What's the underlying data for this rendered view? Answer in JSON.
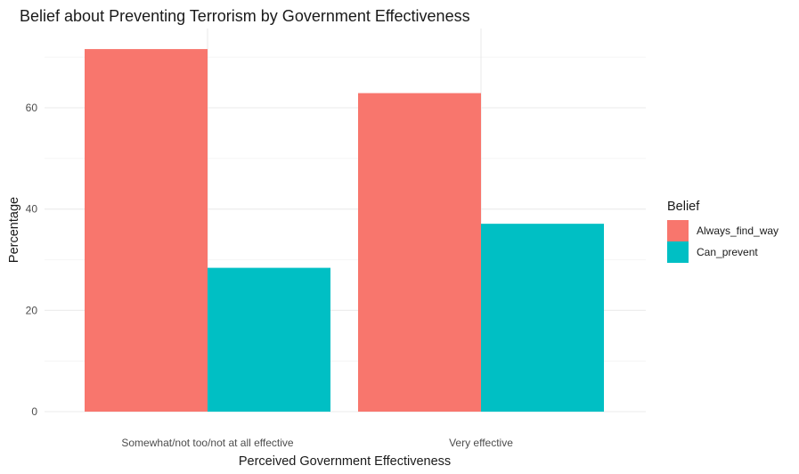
{
  "chart_data": {
    "type": "bar",
    "title": "Belief about Preventing Terrorism by Government Effectiveness",
    "xlabel": "Perceived Government Effectiveness",
    "ylabel": "Percentage",
    "categories": [
      "Somewhat/not too/not at all effective",
      "Very effective"
    ],
    "series": [
      {
        "name": "Always_find_way",
        "color": "#F8766D",
        "values": [
          71.6,
          62.9
        ]
      },
      {
        "name": "Can_prevent",
        "color": "#00BFC4",
        "values": [
          28.4,
          37.1
        ]
      }
    ],
    "ylim": [
      0,
      75
    ],
    "yticks": [
      0,
      20,
      40,
      60
    ],
    "grid": true,
    "legend": {
      "title": "Belief",
      "position": "right"
    }
  }
}
